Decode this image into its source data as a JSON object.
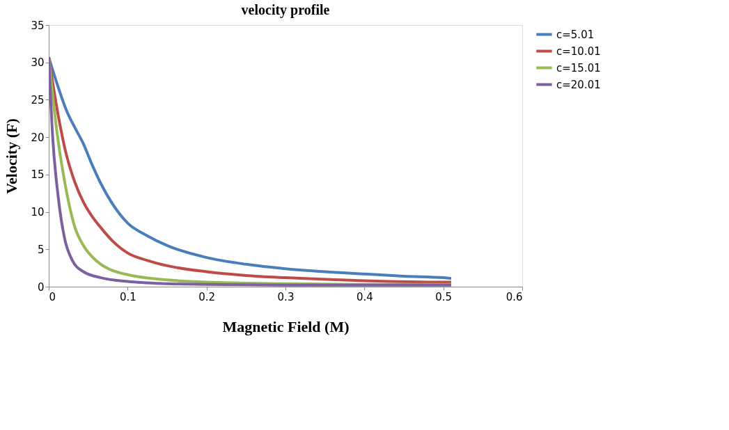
{
  "chart_data": {
    "type": "line",
    "title": "velocity profile",
    "xlabel": "Magnetic Field (M)",
    "ylabel": "Velocity (F)",
    "xlim": [
      0,
      0.6
    ],
    "xticks": [
      0,
      0.1,
      0.2,
      0.3,
      0.4,
      0.5,
      0.6
    ],
    "ylim": [
      0,
      35
    ],
    "yticks": [
      0,
      5,
      10,
      15,
      20,
      25,
      30,
      35
    ],
    "grid": false,
    "legend": "right",
    "marker": "none",
    "line_style": "solid",
    "series": [
      {
        "name": "c=5.01",
        "color": "#4a7ebb",
        "x": [
          0,
          0.011,
          0.022,
          0.033,
          0.044,
          0.055,
          0.066,
          0.08,
          0.1,
          0.125,
          0.15,
          0.2,
          0.25,
          0.3,
          0.35,
          0.4,
          0.45,
          0.5,
          0.51
        ],
        "values": [
          30.7,
          27,
          23.7,
          21.3,
          19.1,
          16.3,
          13.8,
          11.2,
          8.5,
          6.8,
          5.5,
          3.9,
          3.0,
          2.4,
          2.0,
          1.7,
          1.4,
          1.2,
          1.1
        ]
      },
      {
        "name": "c=10.01",
        "color": "#be4b48",
        "x": [
          0,
          0.011,
          0.022,
          0.033,
          0.044,
          0.055,
          0.066,
          0.08,
          0.1,
          0.125,
          0.15,
          0.2,
          0.25,
          0.3,
          0.4,
          0.5,
          0.51
        ],
        "values": [
          30.7,
          23.5,
          17.8,
          14.0,
          11.3,
          9.4,
          7.9,
          6.2,
          4.5,
          3.5,
          2.8,
          2.0,
          1.5,
          1.2,
          0.8,
          0.6,
          0.6
        ]
      },
      {
        "name": "c=15.01",
        "color": "#98b954",
        "x": [
          0,
          0.01,
          0.022,
          0.033,
          0.044,
          0.055,
          0.066,
          0.08,
          0.1,
          0.15,
          0.2,
          0.3,
          0.4,
          0.51
        ],
        "values": [
          30.7,
          21,
          13,
          8,
          5.5,
          4.0,
          3.0,
          2.2,
          1.6,
          0.9,
          0.6,
          0.4,
          0.3,
          0.3
        ]
      },
      {
        "name": "c=20.01",
        "color": "#7d60a0",
        "x": [
          0,
          0.005,
          0.012,
          0.02,
          0.03,
          0.044,
          0.066,
          0.1,
          0.15,
          0.2,
          0.3,
          0.51
        ],
        "values": [
          30.7,
          20,
          12,
          6.5,
          3.5,
          2.0,
          1.2,
          0.7,
          0.4,
          0.3,
          0.2,
          0.2
        ]
      }
    ]
  }
}
